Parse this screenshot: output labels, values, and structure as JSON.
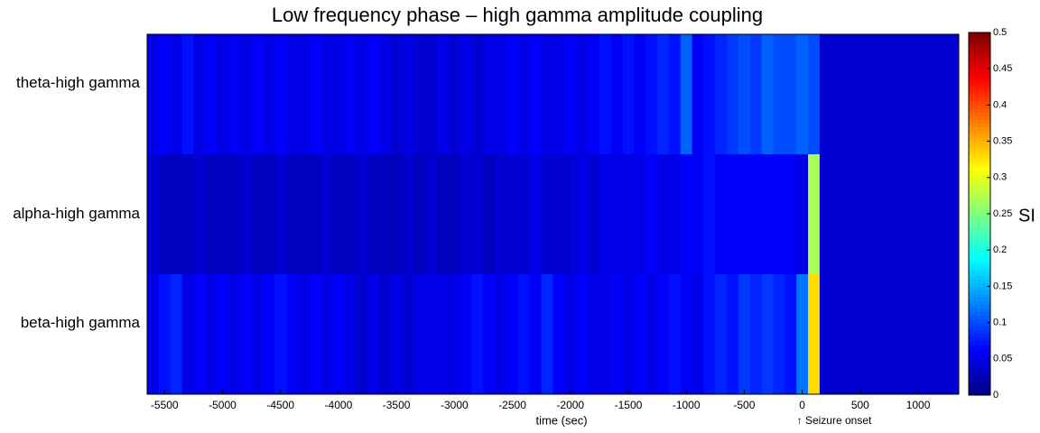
{
  "chart_data": {
    "type": "heatmap",
    "title": "Low frequency phase – high gamma amplitude coupling",
    "x_label": "time (sec)",
    "annotation": {
      "text": "↑ Seizure onset",
      "x": 0
    },
    "colorbar_label": "SI",
    "colormap": "jet",
    "rows": [
      "theta-high gamma",
      "alpha-high gamma",
      "beta-high gamma"
    ],
    "x_bins": [
      -5650,
      -5550,
      -5450,
      -5350,
      -5250,
      -5150,
      -5050,
      -4950,
      -4850,
      -4750,
      -4650,
      -4550,
      -4450,
      -4350,
      -4250,
      -4150,
      -4050,
      -3950,
      -3850,
      -3750,
      -3650,
      -3550,
      -3450,
      -3350,
      -3250,
      -3150,
      -3050,
      -2950,
      -2850,
      -2750,
      -2650,
      -2550,
      -2450,
      -2350,
      -2250,
      -2150,
      -2050,
      -1950,
      -1850,
      -1750,
      -1650,
      -1550,
      -1450,
      -1350,
      -1250,
      -1150,
      -1050,
      -950,
      -850,
      -750,
      -650,
      -550,
      -450,
      -350,
      -250,
      -150,
      -50,
      50,
      150,
      250,
      350,
      450,
      550,
      650,
      750,
      850,
      950,
      1050,
      1150,
      1250,
      1350
    ],
    "values": [
      [
        0.05,
        0.06,
        0.05,
        0.07,
        0.05,
        0.06,
        0.05,
        0.06,
        0.05,
        0.06,
        0.05,
        0.06,
        0.05,
        0.05,
        0.06,
        0.05,
        0.05,
        0.06,
        0.05,
        0.06,
        0.05,
        0.04,
        0.05,
        0.04,
        0.04,
        0.05,
        0.04,
        0.05,
        0.04,
        0.05,
        0.05,
        0.06,
        0.05,
        0.06,
        0.05,
        0.05,
        0.06,
        0.05,
        0.06,
        0.07,
        0.06,
        0.07,
        0.06,
        0.07,
        0.08,
        0.07,
        0.11,
        0.06,
        0.07,
        0.08,
        0.09,
        0.1,
        0.09,
        0.11,
        0.1,
        0.1,
        0.11,
        0.1,
        0.04,
        0.04,
        0.04,
        0.04,
        0.04,
        0.04,
        0.04,
        0.04,
        0.04,
        0.04,
        0.04,
        0.04
      ],
      [
        0.04,
        0.03,
        0.03,
        0.03,
        0.04,
        0.03,
        0.03,
        0.03,
        0.04,
        0.03,
        0.03,
        0.04,
        0.03,
        0.03,
        0.03,
        0.04,
        0.03,
        0.03,
        0.04,
        0.03,
        0.03,
        0.03,
        0.04,
        0.03,
        0.04,
        0.03,
        0.03,
        0.04,
        0.04,
        0.03,
        0.04,
        0.04,
        0.04,
        0.05,
        0.04,
        0.04,
        0.04,
        0.05,
        0.04,
        0.05,
        0.05,
        0.05,
        0.05,
        0.06,
        0.05,
        0.05,
        0.06,
        0.06,
        0.07,
        0.06,
        0.06,
        0.06,
        0.06,
        0.06,
        0.06,
        0.06,
        0.05,
        0.27,
        0.04,
        0.04,
        0.04,
        0.04,
        0.04,
        0.04,
        0.04,
        0.04,
        0.04,
        0.04,
        0.04,
        0.04
      ],
      [
        0.05,
        0.07,
        0.08,
        0.05,
        0.06,
        0.05,
        0.06,
        0.05,
        0.06,
        0.05,
        0.06,
        0.07,
        0.06,
        0.05,
        0.06,
        0.05,
        0.06,
        0.05,
        0.04,
        0.05,
        0.04,
        0.05,
        0.04,
        0.05,
        0.05,
        0.05,
        0.05,
        0.06,
        0.07,
        0.06,
        0.05,
        0.06,
        0.07,
        0.06,
        0.08,
        0.06,
        0.05,
        0.06,
        0.05,
        0.05,
        0.06,
        0.05,
        0.06,
        0.05,
        0.06,
        0.07,
        0.06,
        0.05,
        0.07,
        0.08,
        0.07,
        0.09,
        0.08,
        0.09,
        0.08,
        0.07,
        0.12,
        0.33,
        0.04,
        0.04,
        0.04,
        0.04,
        0.04,
        0.04,
        0.04,
        0.04,
        0.04,
        0.04,
        0.04,
        0.04
      ]
    ],
    "xlim": [
      -5650,
      1350
    ],
    "xticks": [
      -5500,
      -5000,
      -4500,
      -4000,
      -3500,
      -3000,
      -2500,
      -2000,
      -1500,
      -1000,
      -500,
      0,
      500,
      1000
    ],
    "clim": [
      0,
      0.5
    ],
    "cticks": [
      0,
      0.05,
      0.1,
      0.15,
      0.2,
      0.25,
      0.3,
      0.35,
      0.4,
      0.45,
      0.5
    ]
  }
}
